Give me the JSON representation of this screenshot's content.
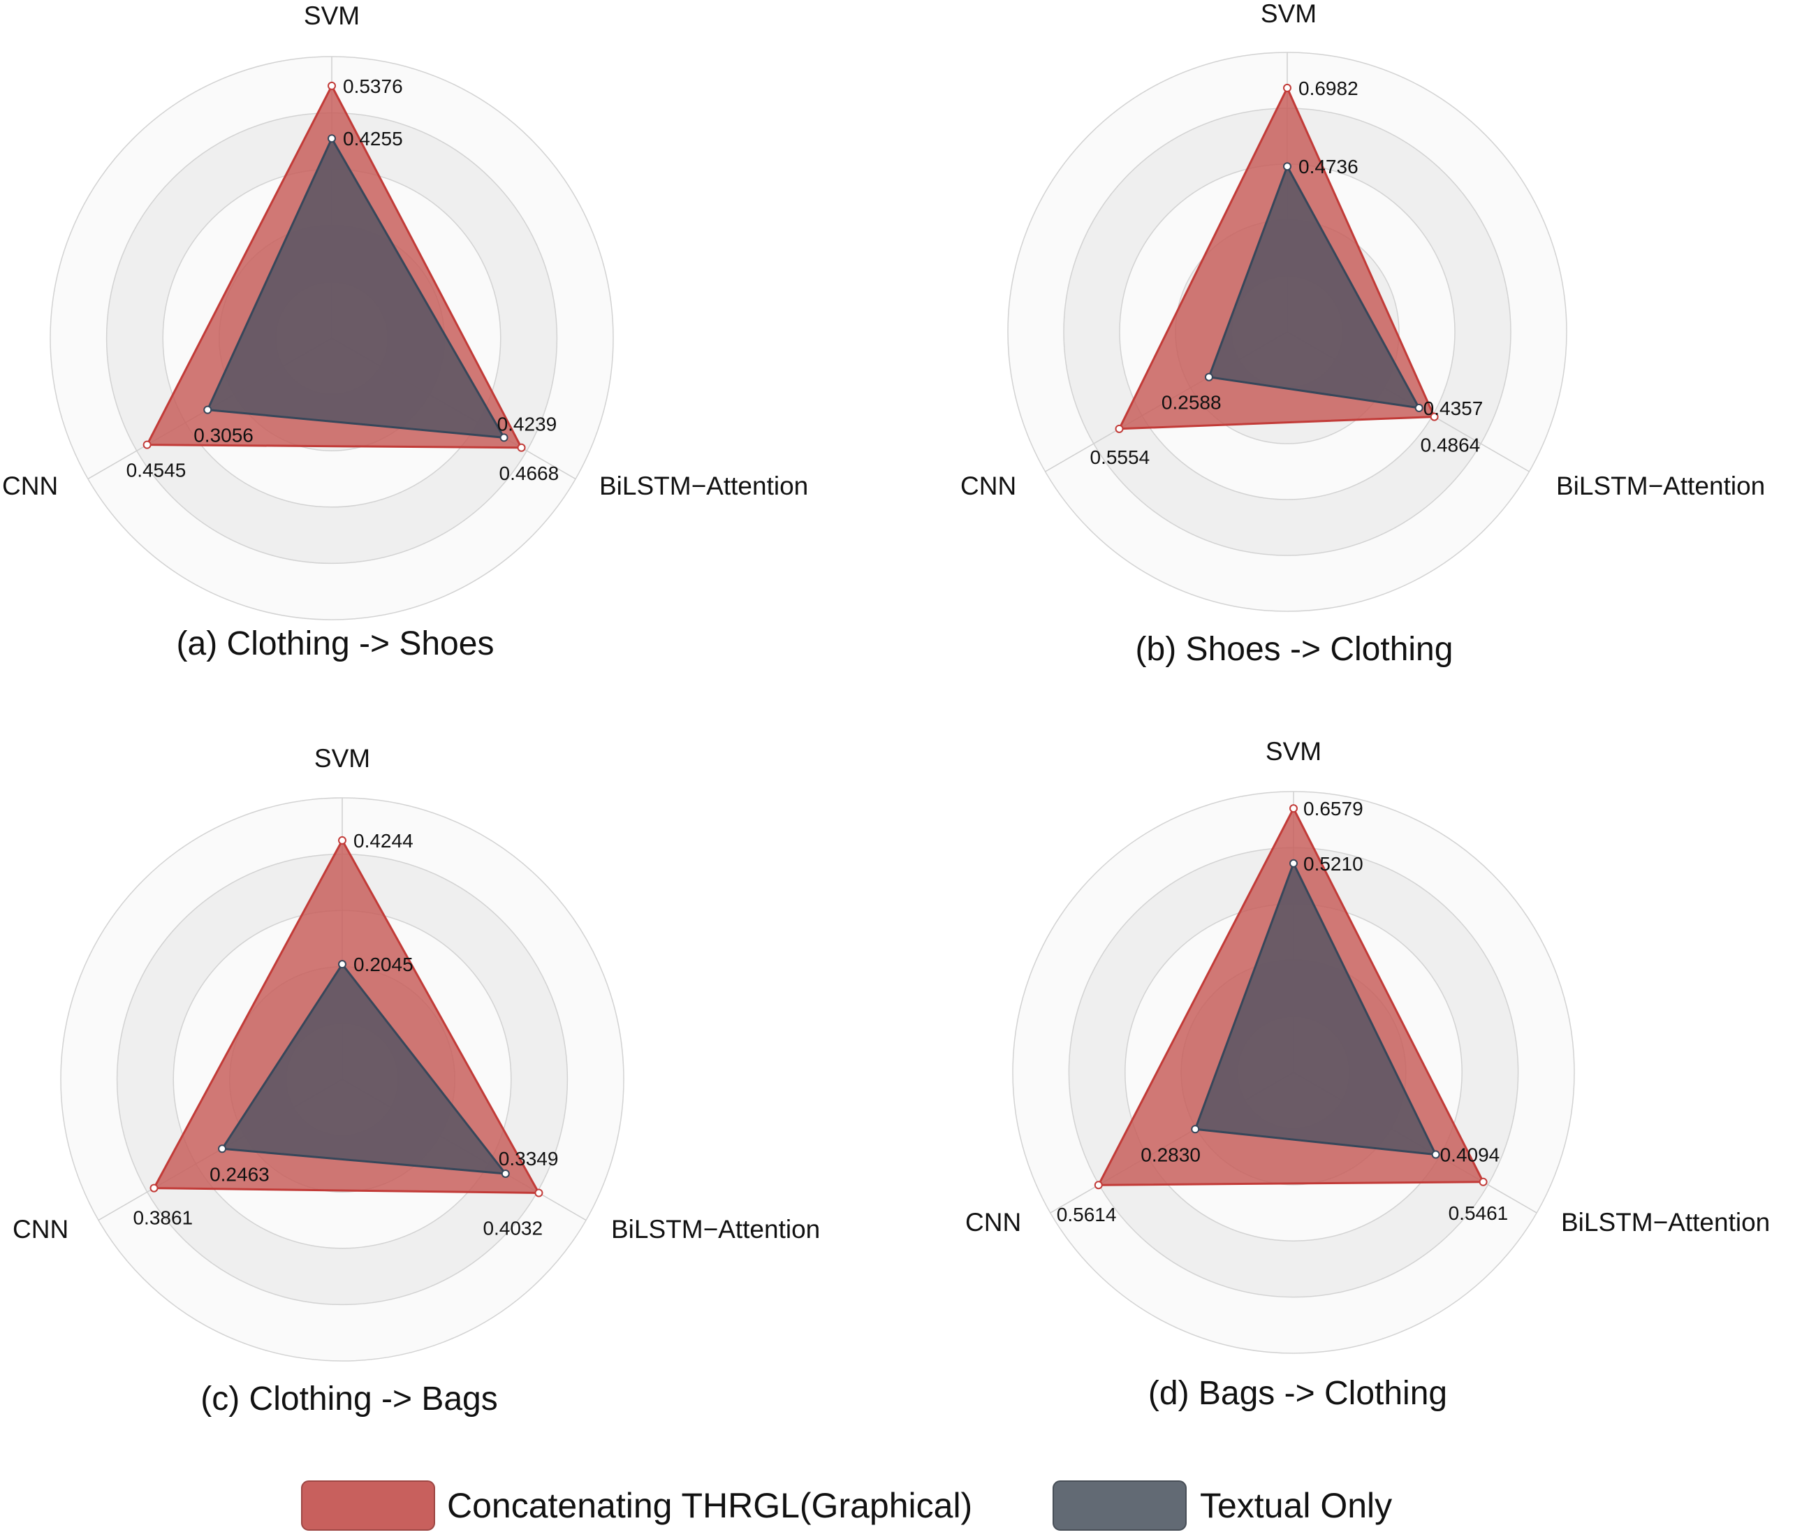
{
  "legend": [
    {
      "label": "Concatenating THRGL(Graphical)",
      "color": "#c8605d"
    },
    {
      "label": "Textual Only",
      "color": "#626a74"
    }
  ],
  "colors": {
    "graphical_fill": "#c8605d",
    "graphical_line": "#c23b38",
    "textual_fill": "#5c5764",
    "textual_line": "#37475a",
    "ring_light": "#fafafa",
    "ring_dark": "#efefef",
    "grid": "#d2d2d2"
  },
  "chart_data": [
    {
      "type": "radar",
      "title": "(a) Clothing -> Shoes",
      "axes": [
        "SVM",
        "BiLSTM−Attention",
        "CNN"
      ],
      "rmax": 0.6,
      "rings": 5,
      "series": [
        {
          "name": "Concatenating THRGL(Graphical)",
          "values": [
            0.5376,
            0.4668,
            0.4545
          ],
          "labels": [
            "0.5376",
            "0.4668",
            "0.4545"
          ]
        },
        {
          "name": "Textual Only",
          "values": [
            0.4255,
            0.4239,
            0.3056
          ],
          "labels": [
            "0.4255",
            "0.4239",
            "0.3056"
          ]
        }
      ]
    },
    {
      "type": "radar",
      "title": "(b) Shoes -> Clothing",
      "axes": [
        "SVM",
        "BiLSTM−Attention",
        "CNN"
      ],
      "rmax": 0.8,
      "rings": 5,
      "series": [
        {
          "name": "Concatenating THRGL(Graphical)",
          "values": [
            0.6982,
            0.4864,
            0.5554
          ],
          "labels": [
            "0.6982",
            "0.4864",
            "0.5554"
          ]
        },
        {
          "name": "Textual Only",
          "values": [
            0.4736,
            0.4357,
            0.2588
          ],
          "labels": [
            "0.4736",
            "0.4357",
            "0.2588"
          ]
        }
      ]
    },
    {
      "type": "radar",
      "title": "(c) Clothing -> Bags",
      "axes": [
        "SVM",
        "BiLSTM−Attention",
        "CNN"
      ],
      "rmax": 0.5,
      "rings": 5,
      "series": [
        {
          "name": "Concatenating THRGL(Graphical)",
          "values": [
            0.4244,
            0.4032,
            0.3861
          ],
          "labels": [
            "0.4244",
            "0.4032",
            "0.3861"
          ]
        },
        {
          "name": "Textual Only",
          "values": [
            0.2045,
            0.3349,
            0.2463
          ],
          "labels": [
            "0.2045",
            "0.3349",
            "0.2463"
          ]
        }
      ]
    },
    {
      "type": "radar",
      "title": "(d) Bags -> Clothing",
      "axes": [
        "SVM",
        "BiLSTM−Attention",
        "CNN"
      ],
      "rmax": 0.7,
      "rings": 5,
      "series": [
        {
          "name": "Concatenating THRGL(Graphical)",
          "values": [
            0.6579,
            0.5461,
            0.5614
          ],
          "labels": [
            "0.6579",
            "0.5461",
            "0.5614"
          ]
        },
        {
          "name": "Textual Only",
          "values": [
            0.521,
            0.4094,
            0.283
          ],
          "labels": [
            "0.5210",
            "0.4094",
            "0.2830"
          ]
        }
      ]
    }
  ]
}
